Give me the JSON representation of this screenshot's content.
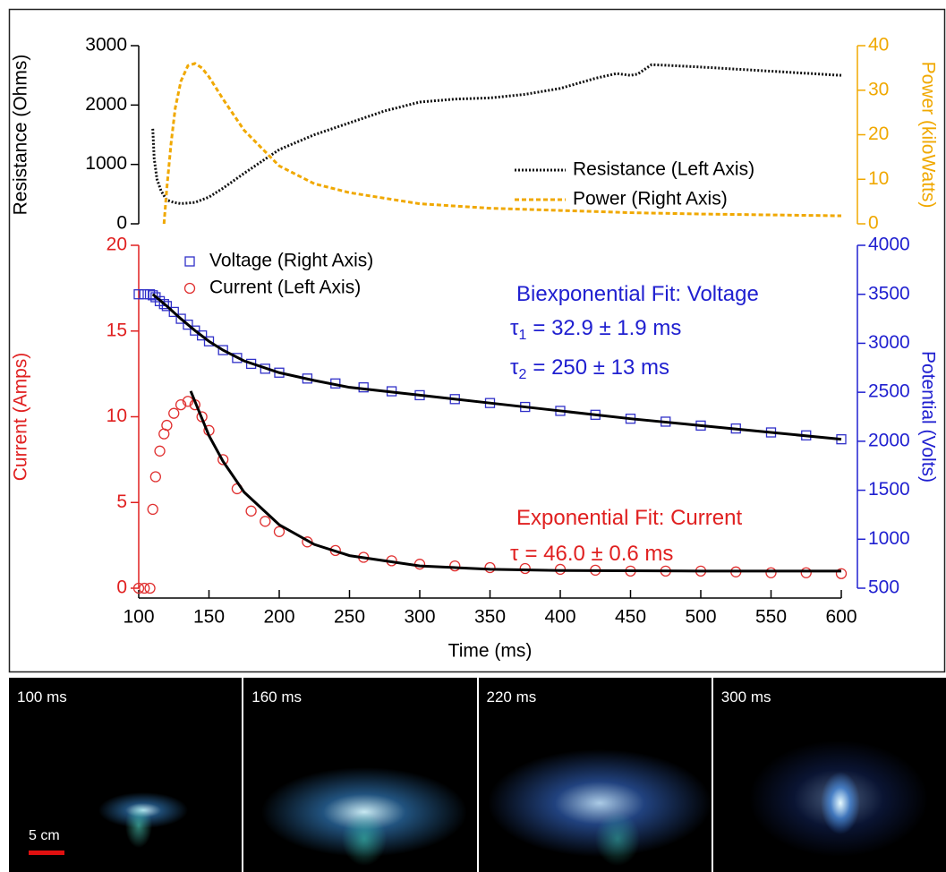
{
  "chart_data": [
    {
      "type": "line",
      "ylabel": "Resistance (Ohms)",
      "y2label": "Power (kiloWatts)",
      "xlim": [
        100,
        600
      ],
      "ylim": [
        0,
        3000
      ],
      "yticks": [
        0,
        1000,
        2000,
        3000
      ],
      "y2lim": [
        0,
        40
      ],
      "y2ticks": [
        0,
        10,
        20,
        30,
        40
      ],
      "ycolor": "#000000",
      "y2color": "#f0a800",
      "legend": "right",
      "series": [
        {
          "name": "Resistance (Left Axis)",
          "color": "#111111",
          "style": "dotted",
          "axis": "y",
          "x": [
            110,
            111,
            113,
            116,
            120,
            125,
            130,
            140,
            150,
            160,
            175,
            200,
            225,
            250,
            275,
            300,
            325,
            350,
            375,
            400,
            425,
            440,
            450,
            455,
            465,
            475,
            500,
            550,
            600
          ],
          "values": [
            1600,
            1100,
            750,
            550,
            400,
            360,
            340,
            360,
            450,
            600,
            850,
            1250,
            1500,
            1700,
            1900,
            2050,
            2100,
            2120,
            2180,
            2280,
            2450,
            2530,
            2500,
            2520,
            2680,
            2670,
            2640,
            2570,
            2500
          ]
        },
        {
          "name": "Power (Right Axis)",
          "color": "#f0a800",
          "style": "dashed",
          "axis": "y2",
          "x": [
            118,
            120,
            123,
            126,
            130,
            135,
            140,
            145,
            150,
            160,
            175,
            200,
            225,
            250,
            300,
            350,
            400,
            450,
            500,
            550,
            600
          ],
          "values": [
            0,
            8,
            18,
            26,
            32,
            35.5,
            36,
            35,
            33,
            28,
            21,
            13,
            9,
            7,
            4.5,
            3.5,
            3,
            2.5,
            2.2,
            2,
            1.8
          ]
        }
      ]
    },
    {
      "type": "scatter",
      "xlabel": "Time (ms)",
      "ylabel": "Current (Amps)",
      "y2label": "Potential (Volts)",
      "xlim": [
        100,
        600
      ],
      "xticks": [
        100,
        150,
        200,
        250,
        300,
        350,
        400,
        450,
        500,
        550,
        600
      ],
      "ylim": [
        0,
        20
      ],
      "yticks": [
        0,
        5,
        10,
        15,
        20
      ],
      "y2lim": [
        500,
        4000
      ],
      "y2ticks": [
        500,
        1000,
        1500,
        2000,
        2500,
        3000,
        3500,
        4000
      ],
      "ycolor": "#e02020",
      "y2color": "#2020d0",
      "legend": "upper left",
      "series": [
        {
          "name": "Voltage (Right Axis)",
          "color": "#3030c8",
          "marker": "square",
          "axis": "y2",
          "x": [
            100,
            104,
            108,
            110,
            112,
            115,
            118,
            120,
            125,
            130,
            135,
            140,
            145,
            150,
            160,
            170,
            180,
            190,
            200,
            220,
            240,
            260,
            280,
            300,
            325,
            350,
            375,
            400,
            425,
            450,
            475,
            500,
            525,
            550,
            575,
            600
          ],
          "values": [
            3500,
            3500,
            3500,
            3490,
            3470,
            3430,
            3400,
            3380,
            3320,
            3250,
            3190,
            3130,
            3080,
            3020,
            2930,
            2850,
            2790,
            2740,
            2700,
            2640,
            2590,
            2550,
            2510,
            2470,
            2430,
            2390,
            2350,
            2310,
            2270,
            2230,
            2200,
            2160,
            2130,
            2090,
            2060,
            2020
          ]
        },
        {
          "name": "Current (Left Axis)",
          "color": "#e03030",
          "marker": "circle",
          "axis": "y",
          "x": [
            100,
            104,
            108,
            110,
            112,
            115,
            118,
            120,
            125,
            130,
            135,
            140,
            145,
            150,
            160,
            170,
            180,
            190,
            200,
            220,
            240,
            260,
            280,
            300,
            325,
            350,
            375,
            400,
            425,
            450,
            475,
            500,
            525,
            550,
            575,
            600
          ],
          "values": [
            0,
            0,
            0,
            4.6,
            6.5,
            8.0,
            9.0,
            9.5,
            10.2,
            10.7,
            10.9,
            10.7,
            10.0,
            9.2,
            7.5,
            5.8,
            4.5,
            3.9,
            3.3,
            2.7,
            2.2,
            1.8,
            1.6,
            1.4,
            1.3,
            1.2,
            1.15,
            1.1,
            1.05,
            1.0,
            1.0,
            1.0,
            0.95,
            0.9,
            0.9,
            0.85
          ]
        }
      ],
      "fits": [
        {
          "color": "#000000",
          "axis": "y2",
          "x": [
            110,
            120,
            130,
            140,
            150,
            160,
            175,
            200,
            225,
            250,
            300,
            350,
            400,
            450,
            500,
            550,
            600
          ],
          "values": [
            3500,
            3380,
            3250,
            3130,
            3020,
            2930,
            2820,
            2700,
            2620,
            2550,
            2470,
            2390,
            2310,
            2230,
            2160,
            2090,
            2020
          ]
        },
        {
          "color": "#000000",
          "axis": "y",
          "x": [
            137,
            145,
            150,
            160,
            175,
            200,
            225,
            250,
            300,
            350,
            400,
            500,
            600
          ],
          "values": [
            11.5,
            9.9,
            8.9,
            7.4,
            5.6,
            3.7,
            2.55,
            1.9,
            1.3,
            1.1,
            1.03,
            1.0,
            1.0
          ]
        }
      ],
      "annotations": [
        {
          "text": "Biexponential Fit: Voltage",
          "color": "#2020d0"
        },
        {
          "symbol": "τ",
          "sub": "1",
          "text": "= 32.9 ± 1.9 ms",
          "color": "#2020d0"
        },
        {
          "symbol": "τ",
          "sub": "2",
          "text": "= 250 ± 13 ms",
          "color": "#2020d0"
        },
        {
          "text": "Exponential Fit: Current",
          "color": "#e02020"
        },
        {
          "symbol": "τ",
          "text": "= 46.0 ± 0.6 ms",
          "color": "#e02020"
        }
      ]
    }
  ],
  "photos": {
    "panels": [
      {
        "label": "100 ms"
      },
      {
        "label": "160 ms"
      },
      {
        "label": "220 ms"
      },
      {
        "label": "300 ms"
      }
    ],
    "scale_bar": "5 cm"
  }
}
